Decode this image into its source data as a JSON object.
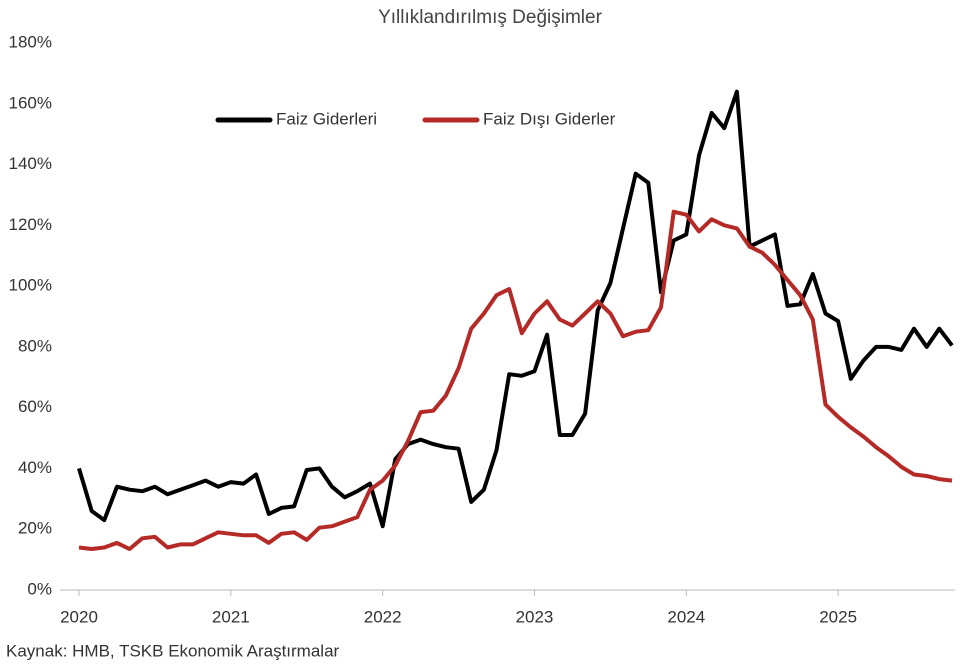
{
  "chart_data": {
    "type": "line",
    "title": "Yıllıklandırılmış  Değişimler",
    "source": "Kaynak: HMB, TSKB Ekonomik Araştırmalar",
    "categories": [
      "2020",
      null,
      null,
      null,
      null,
      null,
      null,
      null,
      null,
      null,
      null,
      null,
      "2021",
      null,
      null,
      null,
      null,
      null,
      null,
      null,
      null,
      null,
      null,
      null,
      "2022",
      null,
      null,
      null,
      null,
      null,
      null,
      null,
      null,
      null,
      null,
      null,
      "2023",
      null,
      null,
      null,
      null,
      null,
      null,
      null,
      null,
      null,
      null,
      null,
      "2024",
      null,
      null,
      null,
      null,
      null,
      null,
      null,
      null,
      null,
      null,
      null,
      "2025",
      null,
      null,
      null,
      null,
      null,
      null,
      null,
      null,
      null
    ],
    "series": [
      {
        "name": "Faiz Giderleri",
        "color": "#000000",
        "values": [
          40,
          26,
          23,
          34,
          33,
          32.5,
          34,
          31.5,
          33,
          34.5,
          36,
          34,
          35.5,
          35,
          38,
          25,
          27,
          27.5,
          39.5,
          40,
          34,
          30.5,
          32.5,
          35,
          21,
          43,
          48,
          49.5,
          48,
          47,
          46.5,
          29,
          33,
          46,
          71,
          70.5,
          72,
          84,
          51,
          51,
          58,
          92,
          101,
          119,
          137,
          134,
          98,
          115,
          117,
          143,
          157,
          152,
          164,
          113,
          115,
          117,
          93.5,
          94,
          104,
          91,
          88.5,
          69.5,
          75.5,
          80,
          80,
          79,
          86,
          80,
          86,
          80.5
        ]
      },
      {
        "name": "Faiz Dışı Giderler",
        "color": "#b52a26",
        "values": [
          14,
          13.5,
          14,
          15.5,
          13.5,
          17,
          17.5,
          14,
          15,
          15,
          17,
          19,
          18.5,
          18,
          18,
          15.5,
          18.5,
          19,
          16.5,
          20.5,
          21,
          22.5,
          24,
          33,
          36,
          41,
          49,
          58.5,
          59,
          64,
          73,
          86,
          91,
          97,
          99,
          84.5,
          91,
          95,
          89,
          87,
          91,
          95,
          91,
          83.5,
          85,
          85.5,
          93,
          124.5,
          123.5,
          118,
          122,
          120,
          119,
          113,
          111,
          107,
          102,
          97,
          89,
          61,
          57,
          53.5,
          50.5,
          47,
          44,
          40.5,
          38,
          37.5,
          36.5,
          36
        ]
      }
    ],
    "ylim": [
      0,
      180
    ],
    "yticks": [
      {
        "value": 0,
        "label": "0%"
      },
      {
        "value": 20,
        "label": "20%"
      },
      {
        "value": 40,
        "label": "40%"
      },
      {
        "value": 60,
        "label": "60%"
      },
      {
        "value": 80,
        "label": "80%"
      },
      {
        "value": 100,
        "label": "100%"
      },
      {
        "value": 120,
        "label": "120%"
      },
      {
        "value": 140,
        "label": "140%"
      },
      {
        "value": 160,
        "label": "160%"
      },
      {
        "value": 180,
        "label": "180%"
      }
    ],
    "legend": "top-left",
    "grid": false
  }
}
